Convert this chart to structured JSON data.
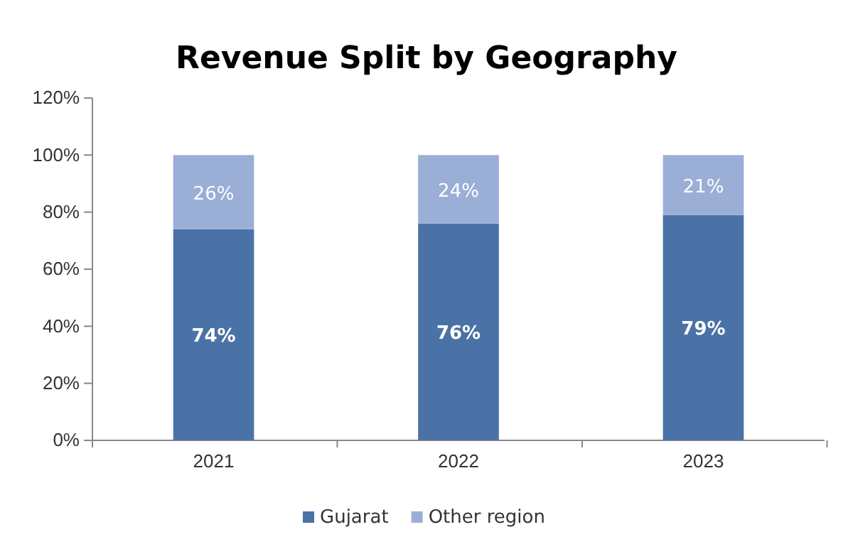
{
  "chart_data": {
    "type": "bar",
    "title": "Revenue Split by Geography",
    "categories": [
      "2021",
      "2022",
      "2023"
    ],
    "stacked": true,
    "series": [
      {
        "name": "Gujarat",
        "color": "#4a72a6",
        "values": [
          74,
          76,
          79
        ],
        "value_labels": [
          "74%",
          "76%",
          "79%"
        ]
      },
      {
        "name": "Other region",
        "color": "#9aaed6",
        "values": [
          26,
          24,
          21
        ],
        "value_labels": [
          "26%",
          "24%",
          "21%"
        ]
      }
    ],
    "ylim": [
      0,
      120
    ],
    "yticks": [
      {
        "value": 0,
        "label": "0%"
      },
      {
        "value": 20,
        "label": "20%"
      },
      {
        "value": 40,
        "label": "40%"
      },
      {
        "value": 60,
        "label": "60%"
      },
      {
        "value": 80,
        "label": "80%"
      },
      {
        "value": 100,
        "label": "100%"
      },
      {
        "value": 120,
        "label": "120%"
      }
    ],
    "grid": false,
    "legend": "bottom"
  }
}
